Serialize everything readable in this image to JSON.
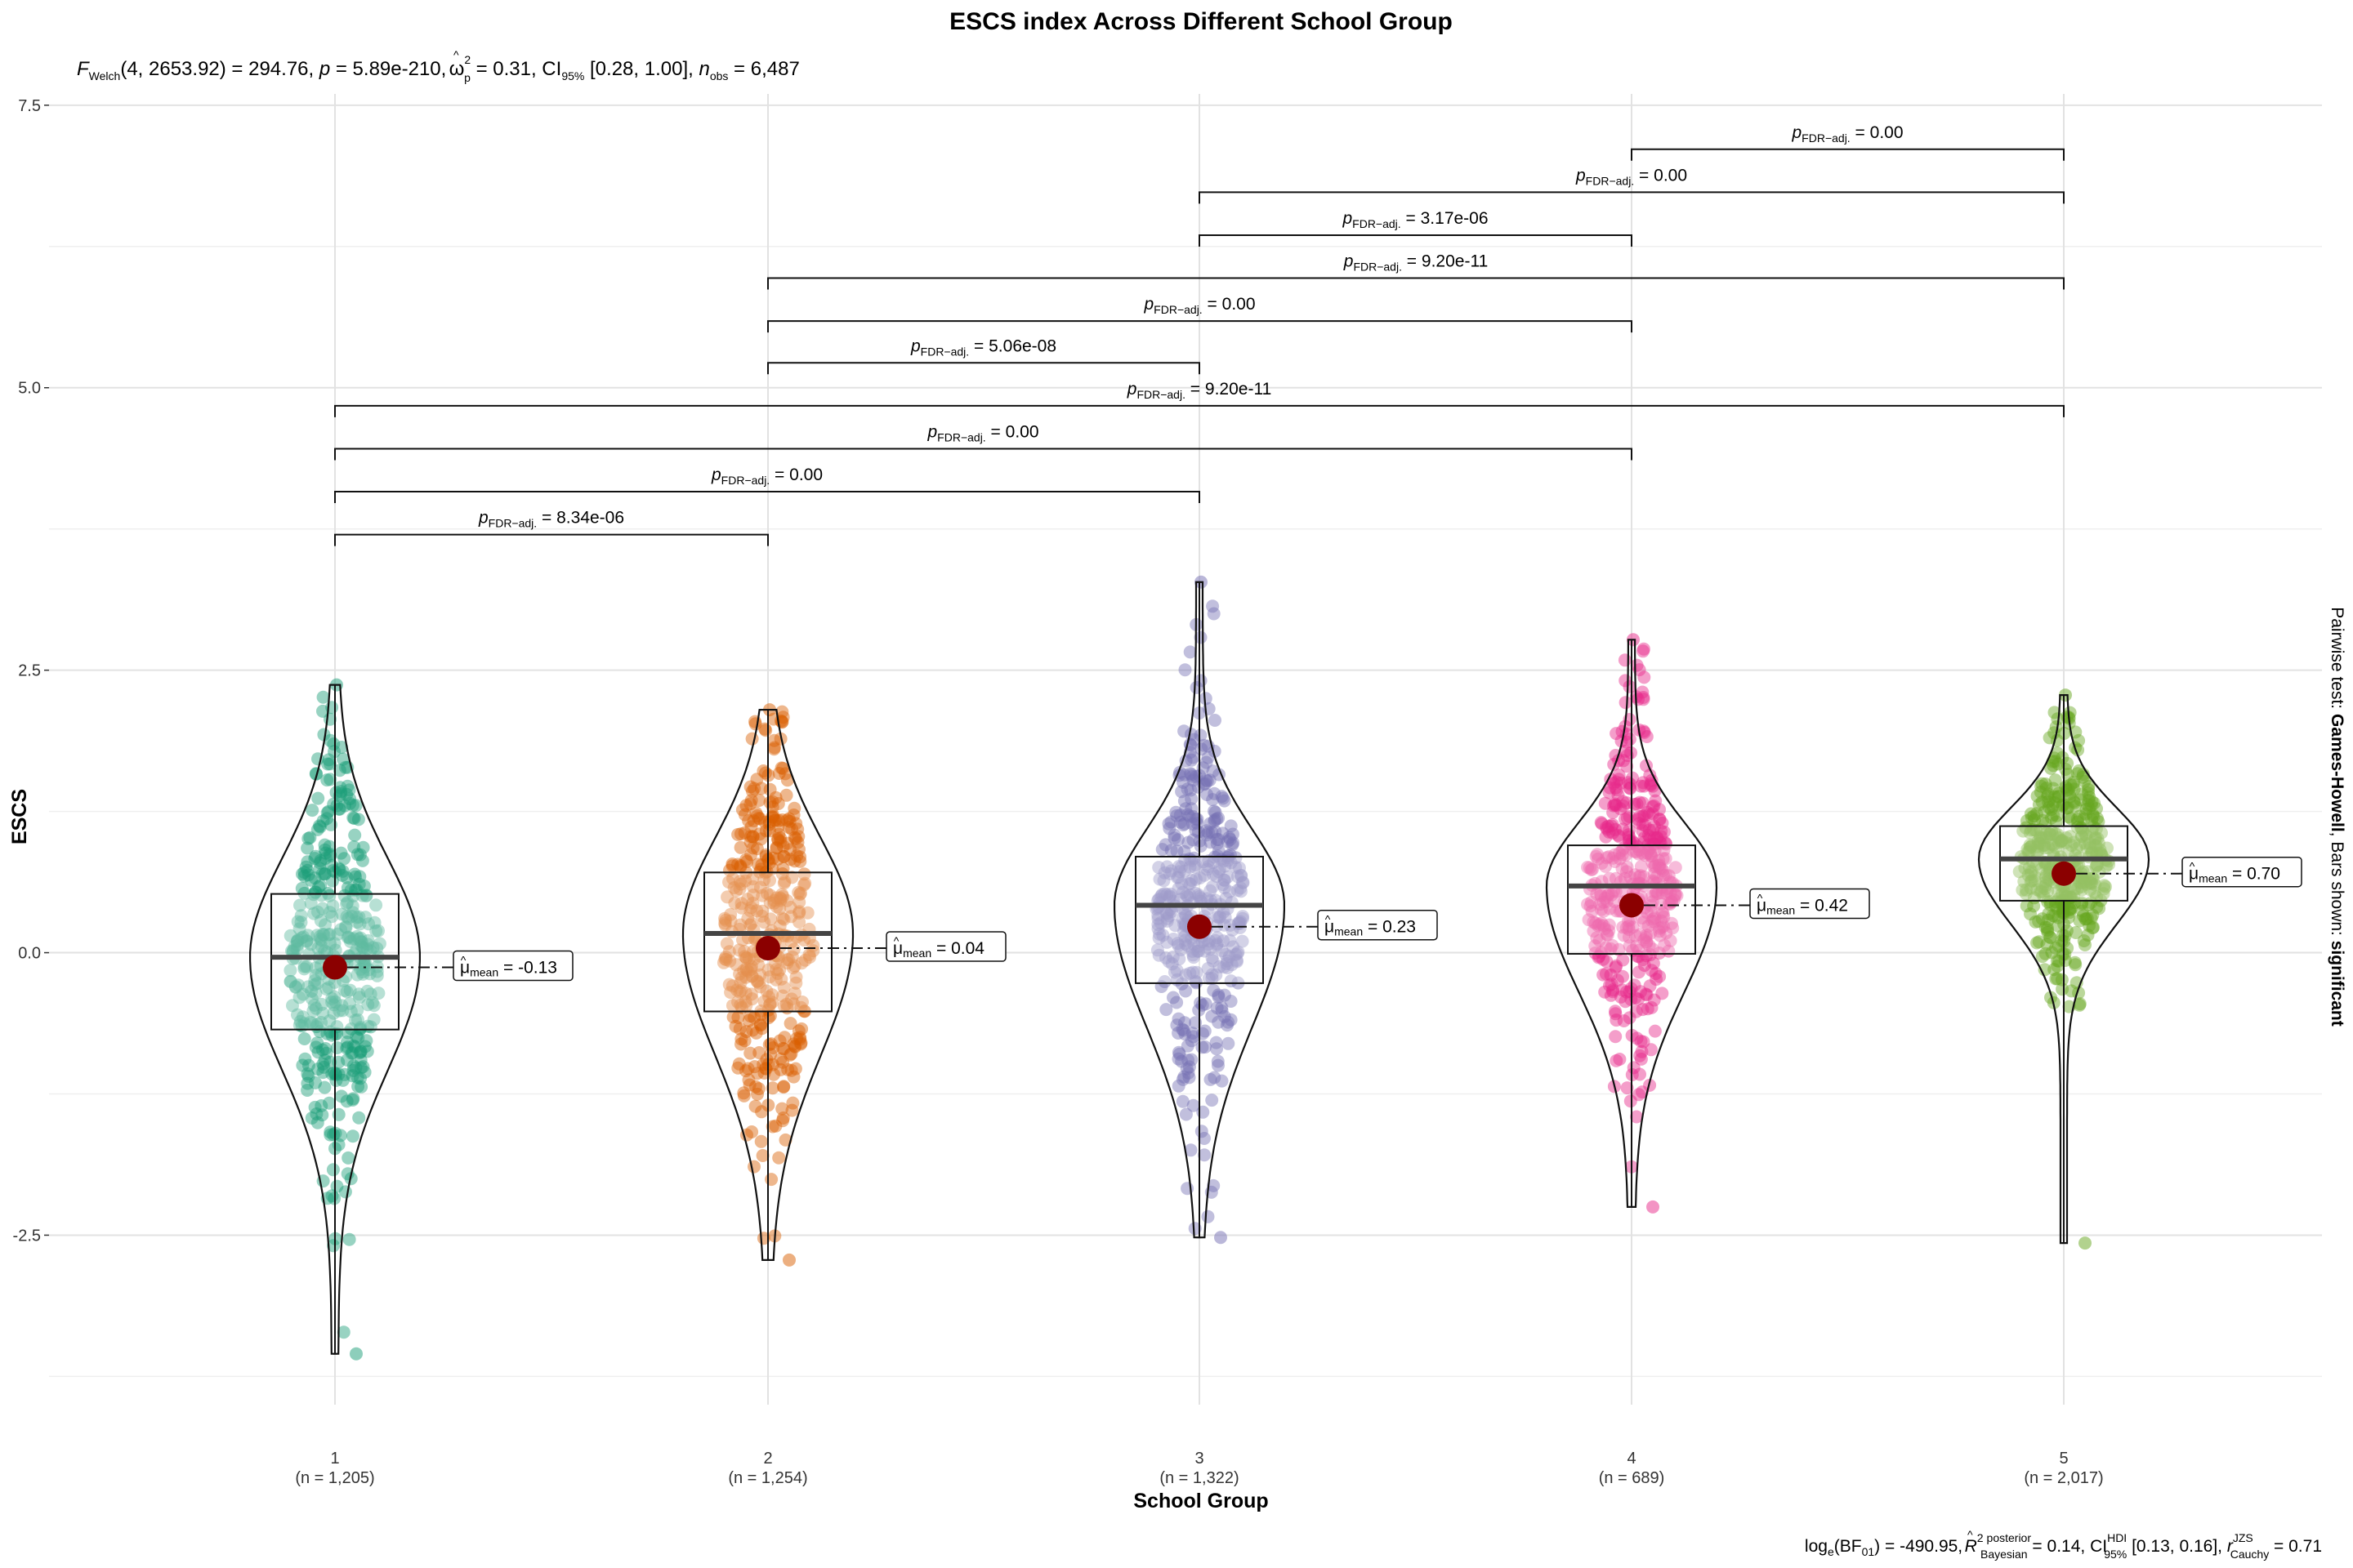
{
  "chart_data": {
    "type": "violin-box-scatter",
    "title": "ESCS index Across Different School Group",
    "subtitle": {
      "prefix_F": "F",
      "F_sub": "Welch",
      "df": "(4, 2653.92) = 294.76, ",
      "p_italic": "p",
      "p_value": " = 5.89e-210, ",
      "effect_symbol": "ω",
      "effect_hat": "^",
      "effect_sup": "2",
      "effect_sub": "p",
      "effect_value": " = 0.31, CI",
      "ci_sub": "95%",
      "ci_value": " [0.28, 1.00], ",
      "n_italic": "n",
      "n_sub": "obs",
      "n_value": " = 6,487"
    },
    "caption": {
      "bf_prefix": "log",
      "bf_sub": "e",
      "bf_value": "(BF",
      "bf_sub2": "01",
      "bf_rest": ") = -490.95, ",
      "r2_italic": "R",
      "r2_hat": "^",
      "r2_sup": "2",
      "r2_sup2": "posterior",
      "r2_sub": "Bayesian",
      "r2_value": " = 0.14, CI",
      "ci_sup": "HDI",
      "ci_sub": "95%",
      "ci_value": " [0.13, 0.16], ",
      "r_italic": "r",
      "r_sup": "JZS",
      "r_sub": "Cauchy",
      "r_value": " = 0.71"
    },
    "xlabel": "School Group",
    "ylabel": "ESCS",
    "ylim": [
      -4.0,
      7.6
    ],
    "yticks": [
      -2.5,
      0.0,
      2.5,
      5.0,
      7.5
    ],
    "ytick_labels": [
      "-2.5",
      "0.0",
      "2.5",
      "5.0",
      "7.5"
    ],
    "grid": true,
    "categories": [
      "1",
      "2",
      "3",
      "4",
      "5"
    ],
    "n_labels": [
      "(n = 1,205)",
      "(n = 1,254)",
      "(n = 1,322)",
      "(n = 689)",
      "(n = 2,017)"
    ],
    "colors": [
      "#1B9E77",
      "#D95F02",
      "#7570B3",
      "#E7298A",
      "#66A61E"
    ],
    "mean_color": "#8B0000",
    "groups": [
      {
        "category": "1",
        "mean": -0.13,
        "mean_label": "= -0.13",
        "q1": -0.68,
        "median": -0.04,
        "q3": 0.52,
        "whisker_low": -3.55,
        "whisker_high": 2.37,
        "min": -3.55,
        "max": 2.37
      },
      {
        "category": "2",
        "mean": 0.04,
        "mean_label": "= 0.04",
        "q1": -0.52,
        "median": 0.17,
        "q3": 0.71,
        "whisker_low": -2.72,
        "whisker_high": 2.15,
        "min": -2.72,
        "max": 2.15
      },
      {
        "category": "3",
        "mean": 0.23,
        "mean_label": "= 0.23",
        "q1": -0.27,
        "median": 0.42,
        "q3": 0.85,
        "whisker_low": -2.52,
        "whisker_high": 3.28,
        "min": -2.52,
        "max": 3.28
      },
      {
        "category": "4",
        "mean": 0.42,
        "mean_label": "= 0.42",
        "q1": -0.01,
        "median": 0.59,
        "q3": 0.95,
        "whisker_low": -2.25,
        "whisker_high": 2.77,
        "min": -2.25,
        "max": 2.77
      },
      {
        "category": "5",
        "mean": 0.7,
        "mean_label": "= 0.70",
        "q1": 0.46,
        "median": 0.83,
        "q3": 1.12,
        "whisker_low": -2.57,
        "whisker_high": 2.28,
        "min": -2.57,
        "max": 2.28
      }
    ],
    "mean_label_prefix": "μ",
    "mean_label_sub": "mean",
    "pairwise_prefix": "p",
    "pairwise_sub": "FDR−adj.",
    "pairwise": [
      {
        "g1": 1,
        "g2": 2,
        "y": 3.7,
        "label": " = 8.34e-06"
      },
      {
        "g1": 1,
        "g2": 3,
        "y": 4.08,
        "label": " = 0.00"
      },
      {
        "g1": 1,
        "g2": 4,
        "y": 4.46,
        "label": " = 0.00"
      },
      {
        "g1": 1,
        "g2": 5,
        "y": 4.84,
        "label": " = 9.20e-11"
      },
      {
        "g1": 2,
        "g2": 3,
        "y": 5.22,
        "label": " = 5.06e-08"
      },
      {
        "g1": 2,
        "g2": 4,
        "y": 5.59,
        "label": " = 0.00"
      },
      {
        "g1": 2,
        "g2": 5,
        "y": 5.97,
        "label": " = 9.20e-11"
      },
      {
        "g1": 3,
        "g2": 4,
        "y": 6.35,
        "label": " = 3.17e-06"
      },
      {
        "g1": 3,
        "g2": 5,
        "y": 6.73,
        "label": " = 0.00"
      },
      {
        "g1": 4,
        "g2": 5,
        "y": 7.11,
        "label": " = 0.00"
      }
    ],
    "side_label": {
      "prefix": "Pairwise test: ",
      "test": "Games-Howell",
      "middle": ", Bars shown: ",
      "shown": "significant"
    }
  }
}
